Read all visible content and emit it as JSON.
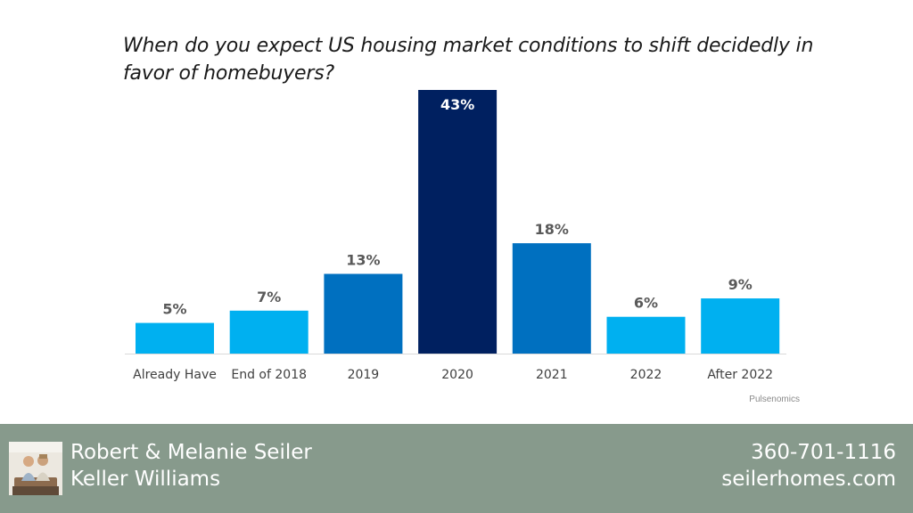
{
  "chart_data": {
    "type": "bar",
    "title": "When do you expect US housing market conditions to shift decidedly in favor of homebuyers?",
    "categories": [
      "Already Have",
      "End of 2018",
      "2019",
      "2020",
      "2021",
      "2022",
      "After 2022"
    ],
    "values": [
      5,
      7,
      13,
      43,
      18,
      6,
      9
    ],
    "data_labels": [
      "5%",
      "7%",
      "13%",
      "43%",
      "18%",
      "6%",
      "9%"
    ],
    "bar_colors": [
      "#00b0f0",
      "#00b0f0",
      "#0070c0",
      "#002060",
      "#0070c0",
      "#00b0f0",
      "#00b0f0"
    ],
    "label_colors": [
      "#595959",
      "#595959",
      "#595959",
      "#ffffff",
      "#595959",
      "#595959",
      "#595959"
    ],
    "ylim": [
      0,
      43
    ],
    "grid": false,
    "legend": "none",
    "xlabel": "",
    "ylabel": "",
    "source": "Pulsenomics"
  },
  "footer": {
    "agent_name": "Robert & Melanie Seiler",
    "brokerage": "Keller Williams",
    "phone": "360-701-1116",
    "website": "seilerhomes.com",
    "background": "#879a8c"
  }
}
